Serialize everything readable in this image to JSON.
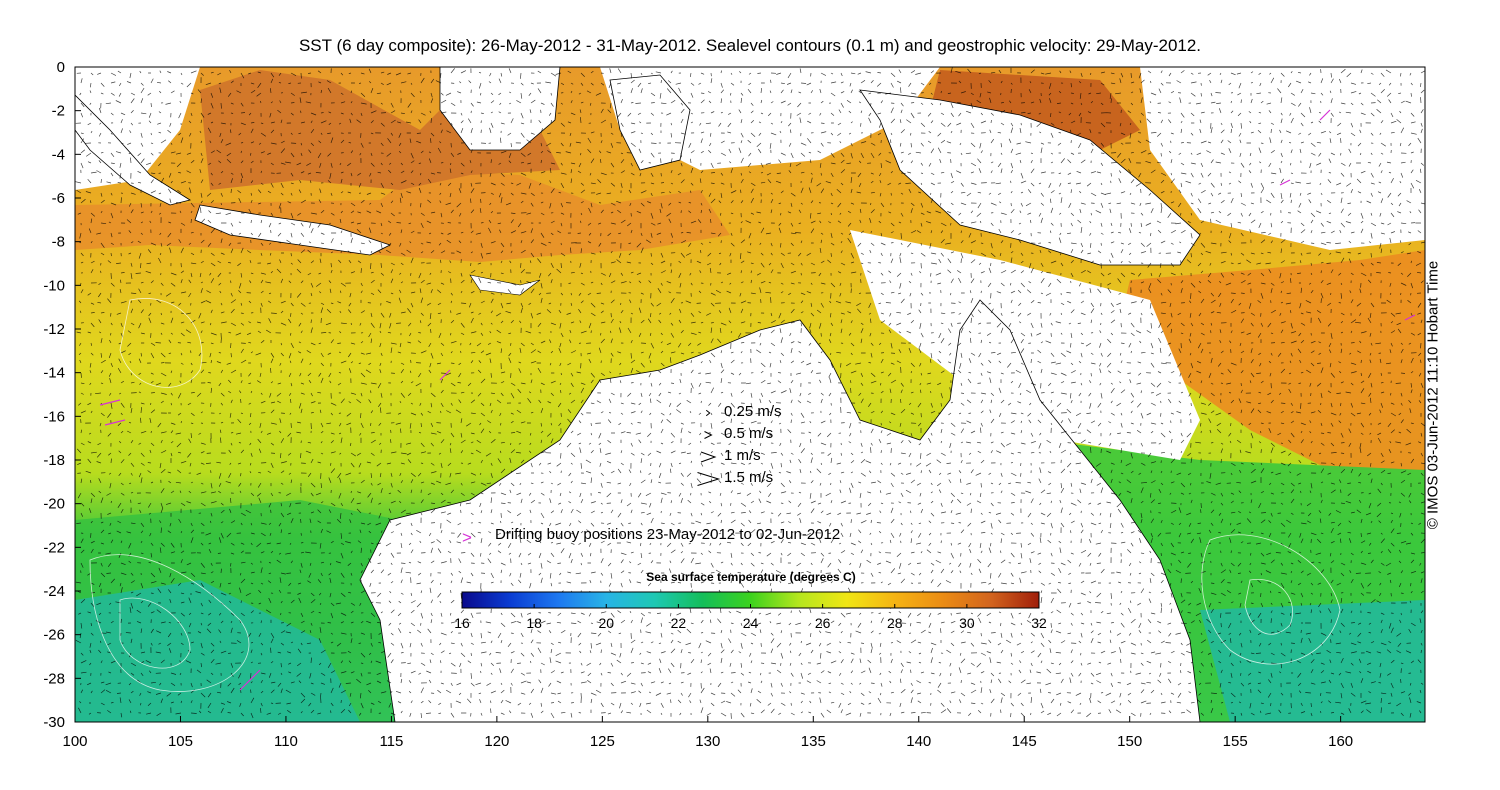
{
  "title": "SST (6 day composite): 26-May-2012 - 31-May-2012. Sealevel contours (0.1 m) and geostrophic velocity: 29-May-2012.",
  "credit": "© IMOS 03-Jun-2012 11:10 Hobart Time",
  "axes": {
    "x_ticks": [
      "100",
      "105",
      "110",
      "115",
      "120",
      "125",
      "130",
      "135",
      "140",
      "145",
      "150",
      "155",
      "160"
    ],
    "y_ticks": [
      "0",
      "-2",
      "-4",
      "-6",
      "-8",
      "-10",
      "-12",
      "-14",
      "-16",
      "-18",
      "-20",
      "-22",
      "-24",
      "-26",
      "-28",
      "-30"
    ],
    "x_range": [
      100,
      164
    ],
    "y_range": [
      -30,
      0
    ]
  },
  "velocity_legend": [
    {
      "label": "0.25 m/s",
      "speed": 0.25
    },
    {
      "label": "0.5 m/s",
      "speed": 0.5
    },
    {
      "label": "1 m/s",
      "speed": 1
    },
    {
      "label": "1.5 m/s",
      "speed": 1.5
    }
  ],
  "buoy_legend": {
    "symbol": ">",
    "color": "#d633d6",
    "label": "Drifting buoy positions 23-May-2012 to 02-Jun-2012"
  },
  "colorbar": {
    "title": "Sea surface temperature (degrees C)",
    "ticks": [
      "16",
      "18",
      "20",
      "22",
      "24",
      "26",
      "28",
      "30",
      "32"
    ],
    "range": [
      16,
      32
    ],
    "colors": [
      "#0a0a8c",
      "#0a3cd2",
      "#1e78f0",
      "#28b4e6",
      "#1ec8b4",
      "#14be5a",
      "#3cd21e",
      "#b4e61e",
      "#f0e614",
      "#f5b414",
      "#eb8c14",
      "#d2641e",
      "#a01e0a"
    ]
  },
  "regions": {
    "warm": "#e8902a",
    "hot": "#c8641e",
    "mid": "#d8d820",
    "cool": "#3cc83c",
    "cold": "#28c8b4",
    "land": "#ffffff"
  }
}
